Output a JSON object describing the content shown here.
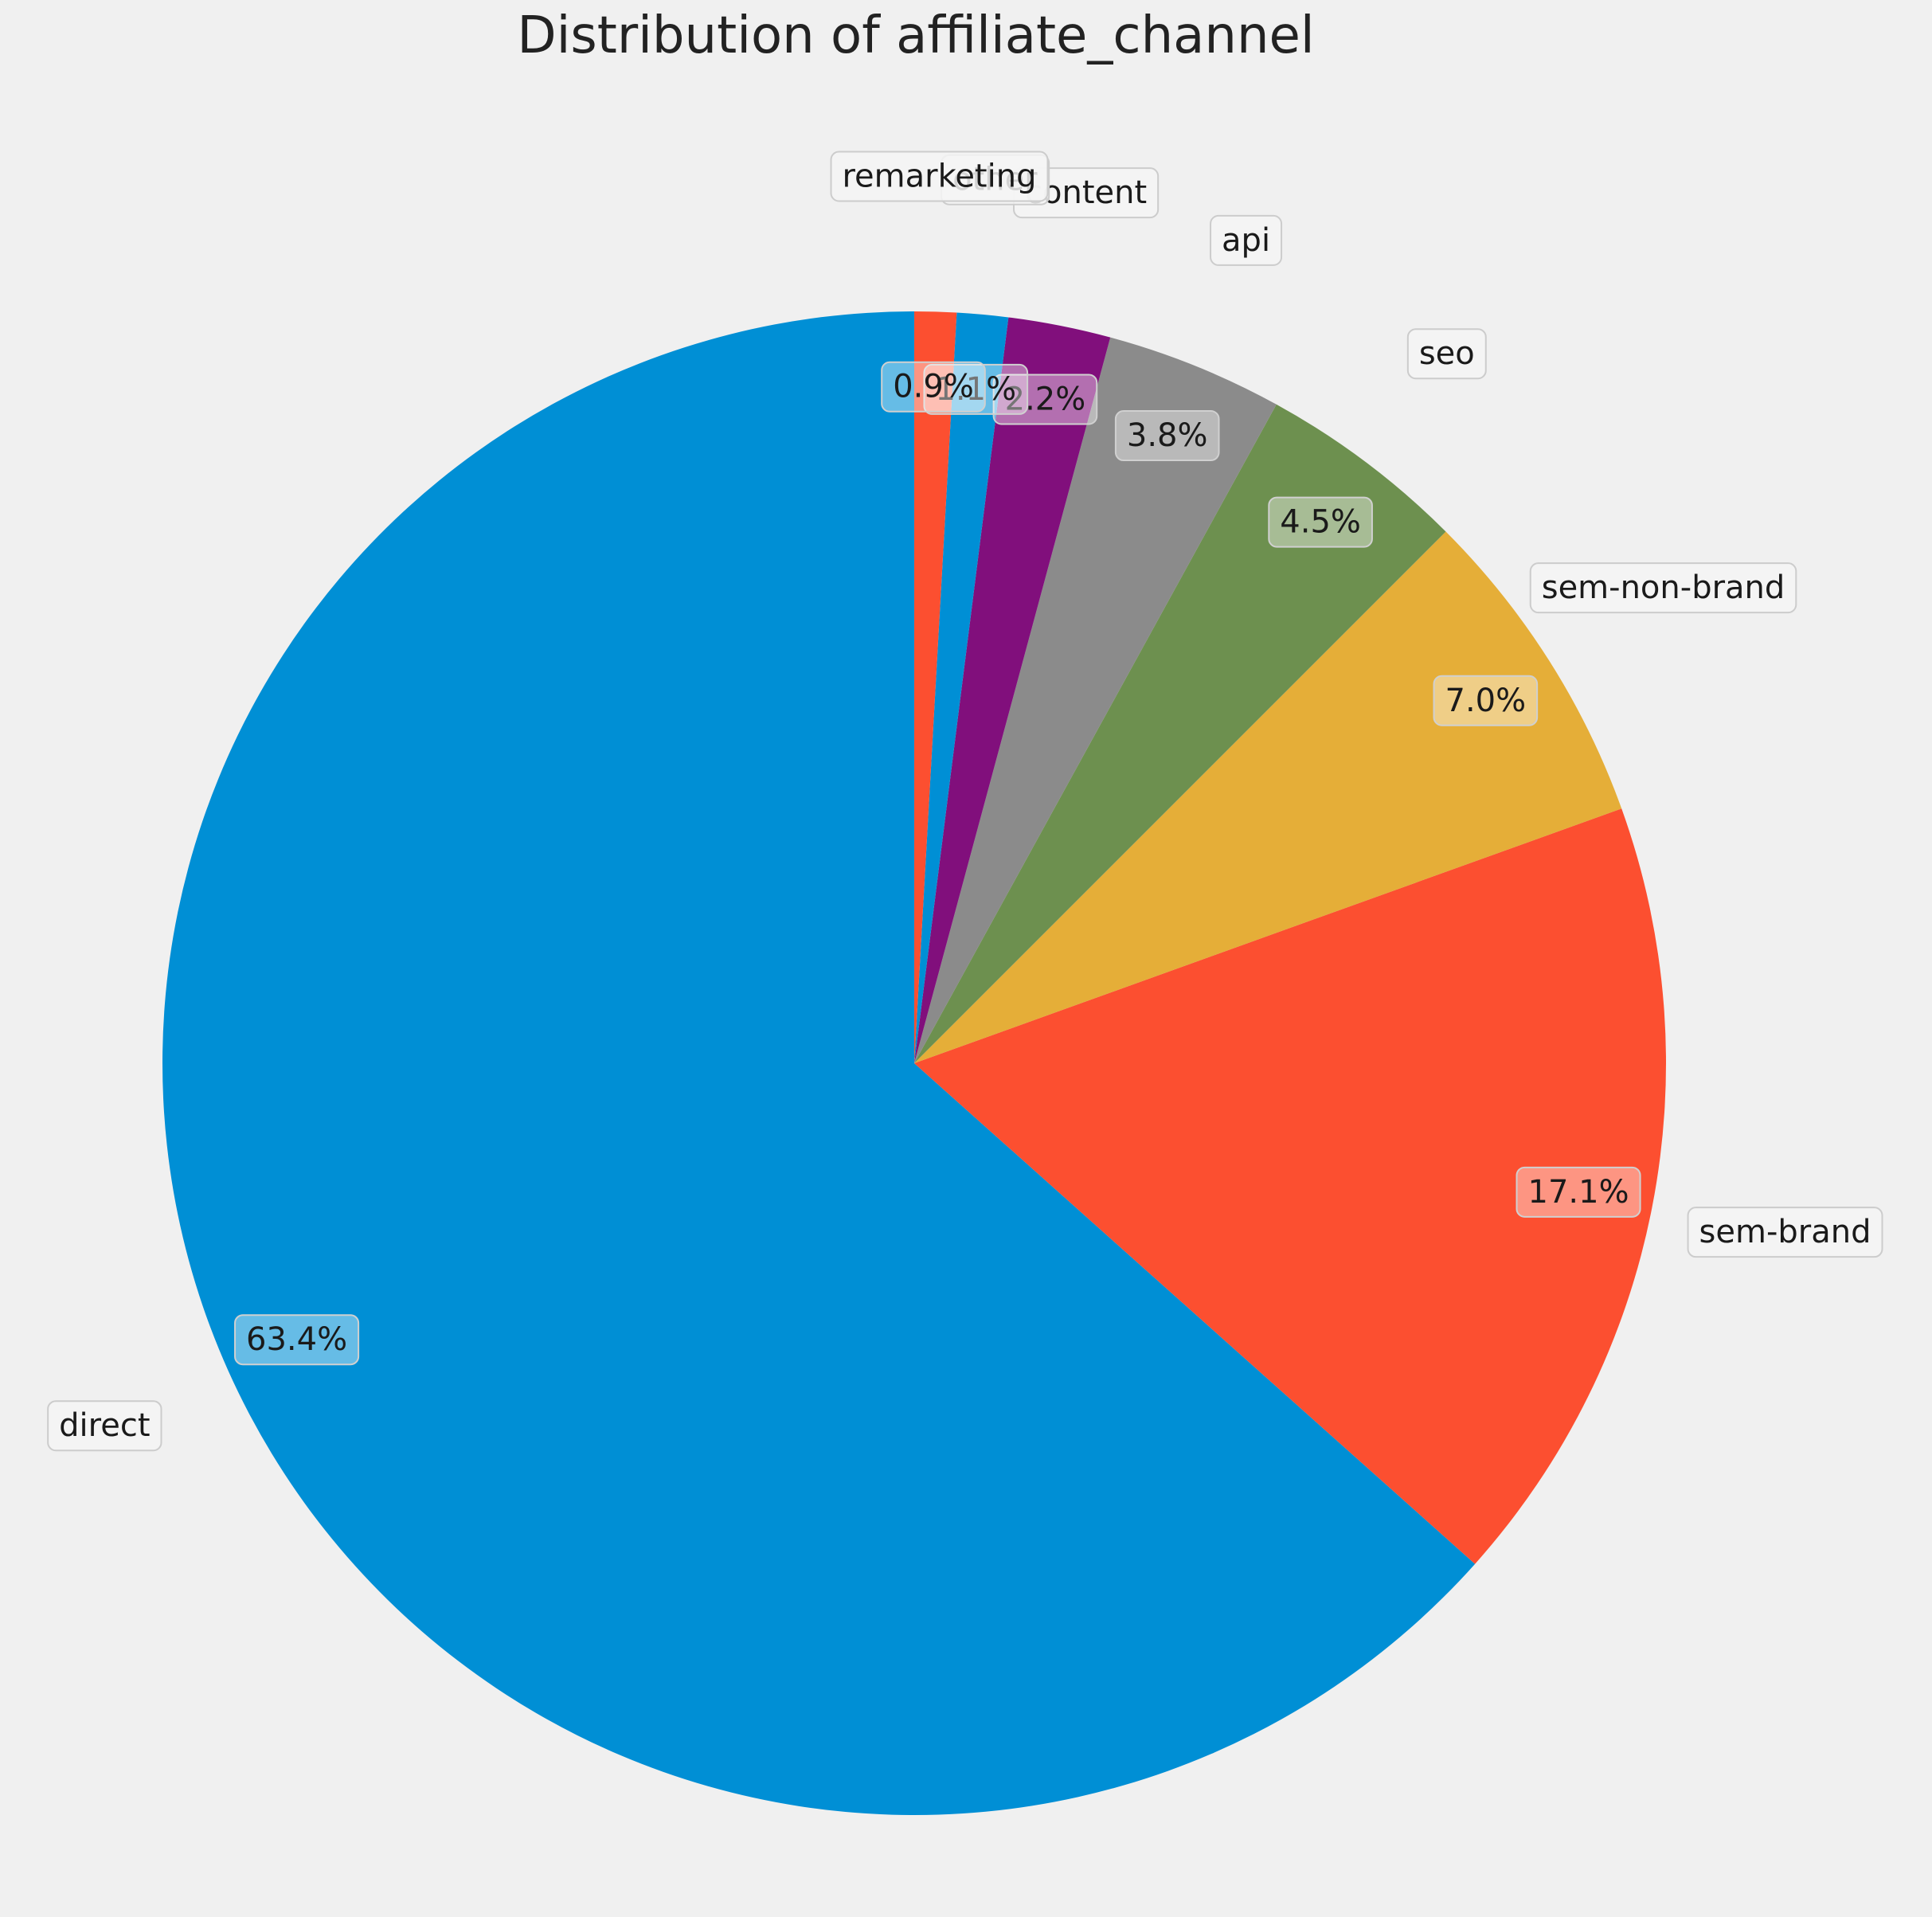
{
  "chart_data": {
    "type": "pie",
    "title": "Distribution of affiliate_channel",
    "categories": [
      "direct",
      "sem-brand",
      "sem-non-brand",
      "seo",
      "api",
      "content",
      "other",
      "remarketing"
    ],
    "values": [
      63.4,
      17.1,
      7.0,
      4.5,
      3.8,
      2.2,
      1.1,
      0.9
    ],
    "value_labels": [
      "63.4%",
      "17.1%",
      "7.0%",
      "4.5%",
      "3.8%",
      "2.2%",
      "1.1%",
      "0.9%"
    ],
    "colors": [
      "#008fd5",
      "#fc4f30",
      "#e5ae38",
      "#6d904f",
      "#8b8b8b",
      "#810f7c",
      "#008fd5",
      "#fc4f30"
    ],
    "start_angle": "top",
    "direction": "clockwise",
    "legend": "none"
  }
}
